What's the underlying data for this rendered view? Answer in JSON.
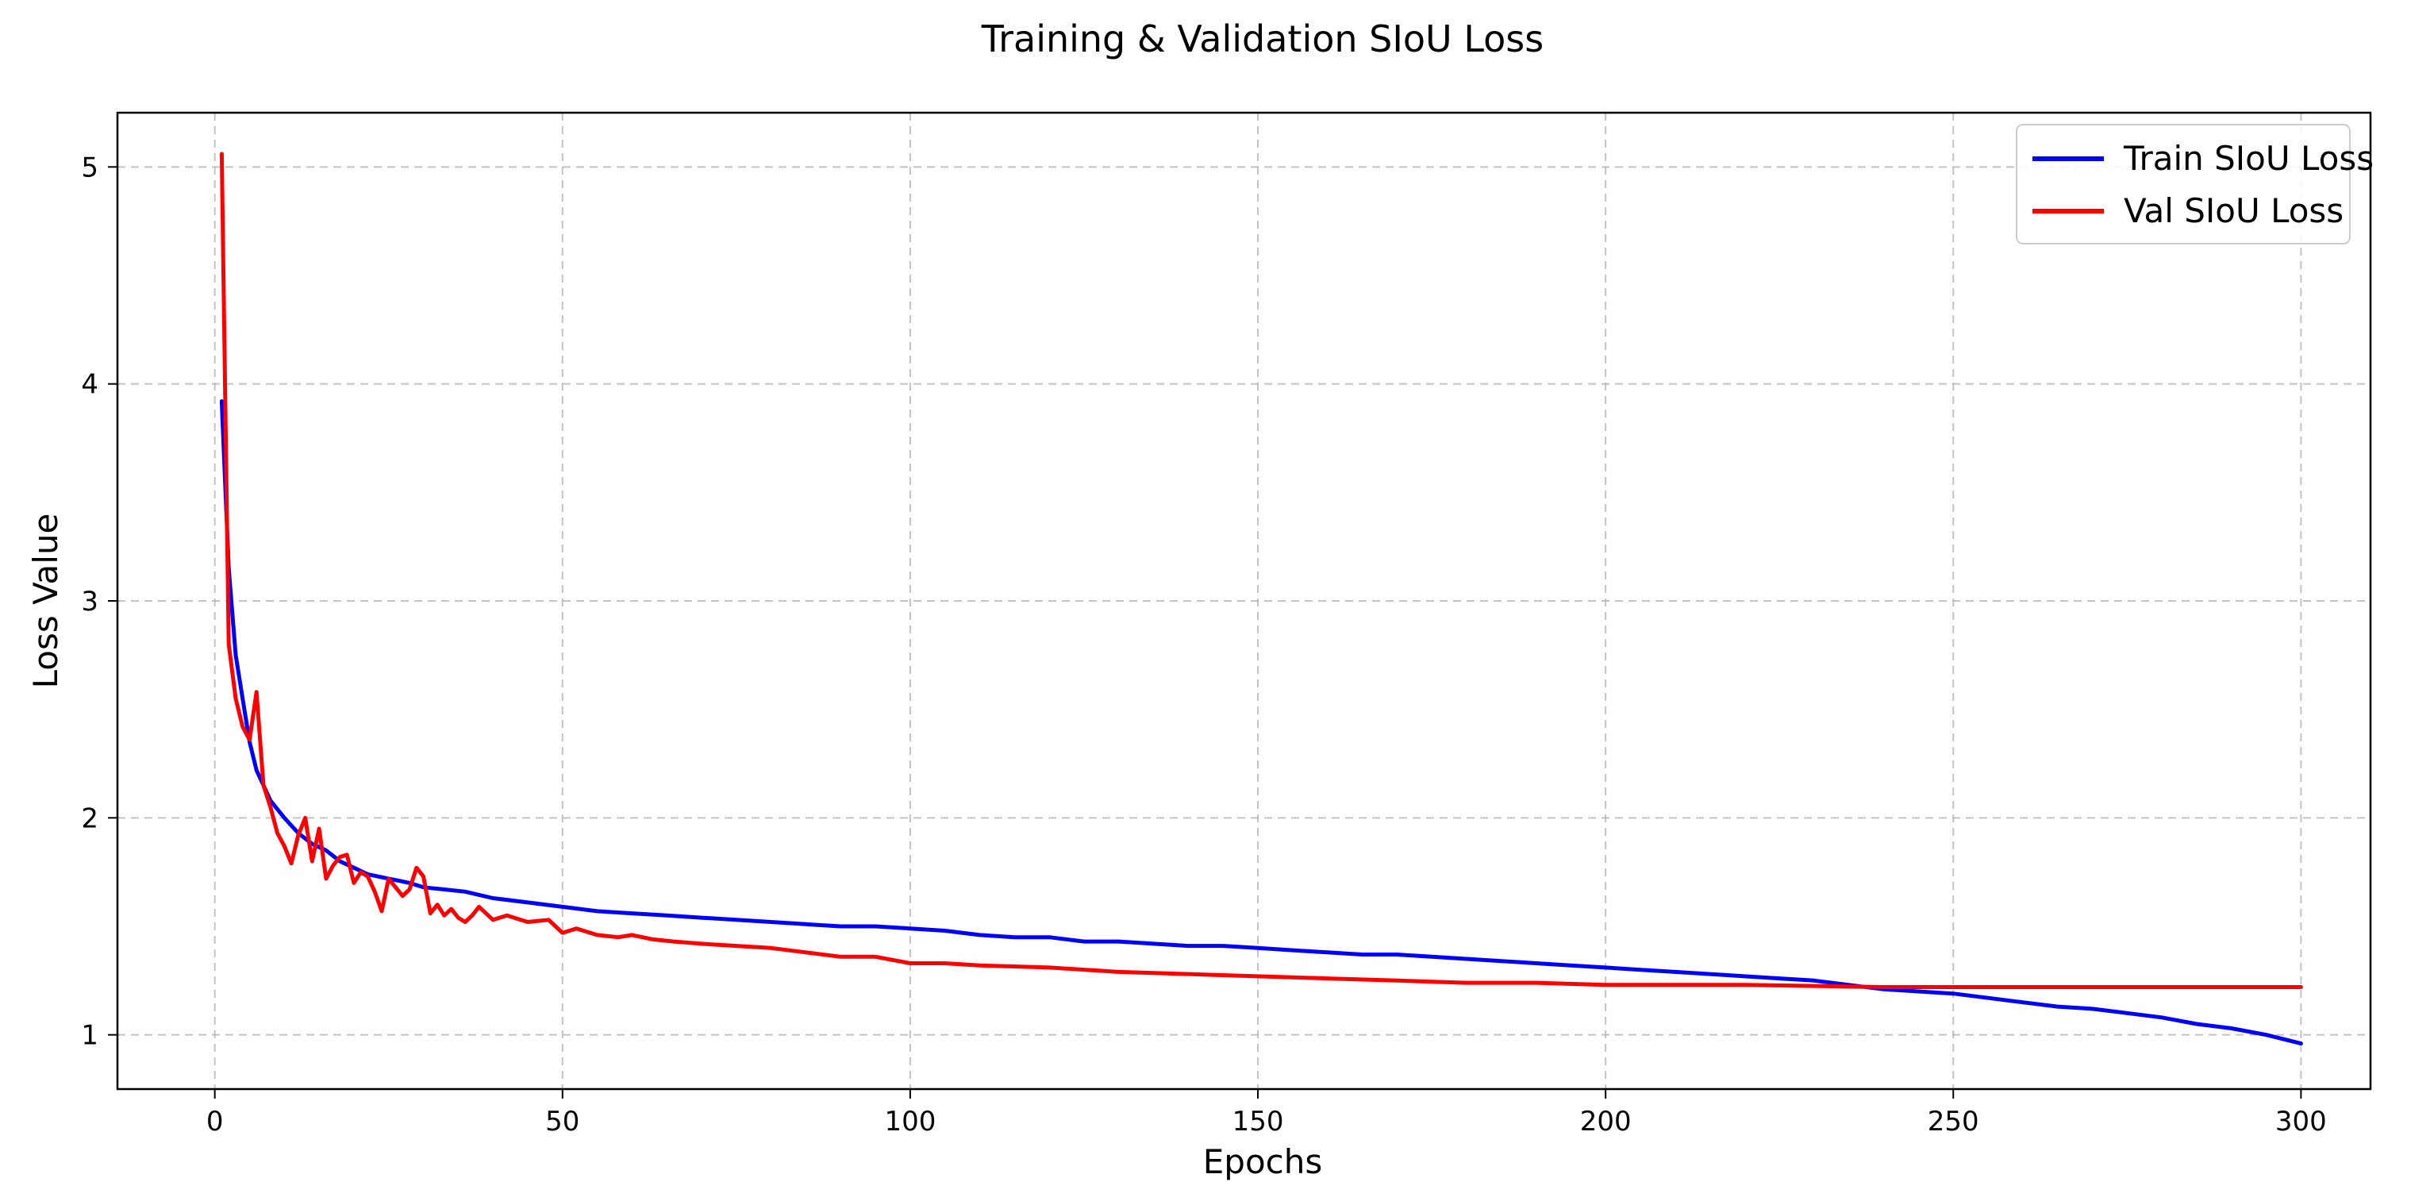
{
  "chart_data": {
    "type": "line",
    "title": "Training & Validation SIoU Loss",
    "xlabel": "Epochs",
    "ylabel": "Loss Value",
    "xlim": [
      -14,
      310
    ],
    "ylim": [
      0.75,
      5.25
    ],
    "xticks": [
      0,
      50,
      100,
      150,
      200,
      250,
      300
    ],
    "yticks": [
      1,
      2,
      3,
      4,
      5
    ],
    "grid": true,
    "legend_position": "top-right",
    "series": [
      {
        "name": "Train SIoU Loss",
        "color": "#0000ff",
        "x": [
          1,
          2,
          3,
          4,
          5,
          6,
          7,
          8,
          9,
          10,
          12,
          14,
          16,
          18,
          20,
          22,
          25,
          28,
          30,
          33,
          36,
          40,
          45,
          50,
          55,
          60,
          65,
          70,
          75,
          80,
          85,
          90,
          95,
          100,
          105,
          110,
          115,
          120,
          125,
          130,
          135,
          140,
          145,
          150,
          155,
          160,
          165,
          170,
          175,
          180,
          185,
          190,
          195,
          200,
          205,
          210,
          215,
          220,
          225,
          230,
          235,
          240,
          245,
          250,
          255,
          260,
          265,
          270,
          275,
          280,
          285,
          290,
          295,
          300
        ],
        "y": [
          3.92,
          3.15,
          2.75,
          2.55,
          2.35,
          2.22,
          2.15,
          2.08,
          2.04,
          2.0,
          1.93,
          1.88,
          1.85,
          1.8,
          1.77,
          1.74,
          1.72,
          1.7,
          1.68,
          1.67,
          1.66,
          1.63,
          1.61,
          1.59,
          1.57,
          1.56,
          1.55,
          1.54,
          1.53,
          1.52,
          1.51,
          1.5,
          1.5,
          1.49,
          1.48,
          1.46,
          1.45,
          1.45,
          1.43,
          1.43,
          1.42,
          1.41,
          1.41,
          1.4,
          1.39,
          1.38,
          1.37,
          1.37,
          1.36,
          1.35,
          1.34,
          1.33,
          1.32,
          1.31,
          1.3,
          1.29,
          1.28,
          1.27,
          1.26,
          1.25,
          1.23,
          1.21,
          1.2,
          1.19,
          1.17,
          1.15,
          1.13,
          1.12,
          1.1,
          1.08,
          1.05,
          1.03,
          1.0,
          0.96
        ]
      },
      {
        "name": "Val SIoU Loss",
        "color": "#ff0000",
        "x": [
          1,
          2,
          3,
          4,
          5,
          6,
          7,
          8,
          9,
          10,
          11,
          12,
          13,
          14,
          15,
          16,
          17,
          18,
          19,
          20,
          21,
          22,
          23,
          24,
          25,
          26,
          27,
          28,
          29,
          30,
          31,
          32,
          33,
          34,
          35,
          36,
          37,
          38,
          40,
          42,
          45,
          48,
          50,
          52,
          55,
          58,
          60,
          63,
          66,
          70,
          75,
          80,
          85,
          90,
          95,
          100,
          105,
          110,
          120,
          130,
          140,
          150,
          160,
          170,
          180,
          190,
          200,
          220,
          240,
          260,
          280,
          300
        ],
        "y": [
          5.06,
          2.8,
          2.55,
          2.42,
          2.36,
          2.58,
          2.15,
          2.05,
          1.93,
          1.87,
          1.79,
          1.92,
          2.0,
          1.8,
          1.95,
          1.72,
          1.78,
          1.82,
          1.83,
          1.7,
          1.75,
          1.73,
          1.66,
          1.57,
          1.72,
          1.68,
          1.64,
          1.67,
          1.77,
          1.73,
          1.56,
          1.6,
          1.55,
          1.58,
          1.54,
          1.52,
          1.55,
          1.59,
          1.53,
          1.55,
          1.52,
          1.53,
          1.47,
          1.49,
          1.46,
          1.45,
          1.46,
          1.44,
          1.43,
          1.42,
          1.41,
          1.4,
          1.38,
          1.36,
          1.36,
          1.33,
          1.33,
          1.32,
          1.31,
          1.29,
          1.28,
          1.27,
          1.26,
          1.25,
          1.24,
          1.24,
          1.23,
          1.23,
          1.22,
          1.22,
          1.22,
          1.22
        ]
      }
    ]
  }
}
